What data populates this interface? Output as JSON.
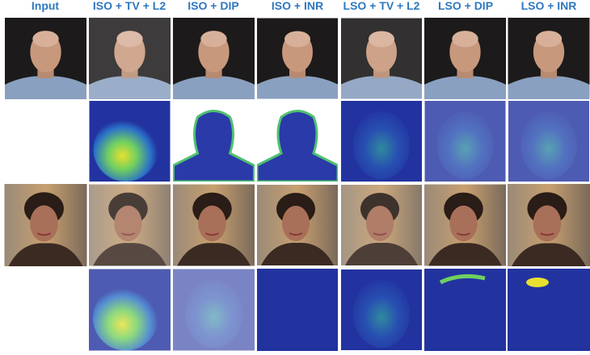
{
  "columns": [
    "Input",
    "ISO + TV + L2",
    "ISO + DIP",
    "ISO + INR",
    "LSO + TV + L2",
    "LSO + DIP",
    "LSO + INR"
  ]
}
